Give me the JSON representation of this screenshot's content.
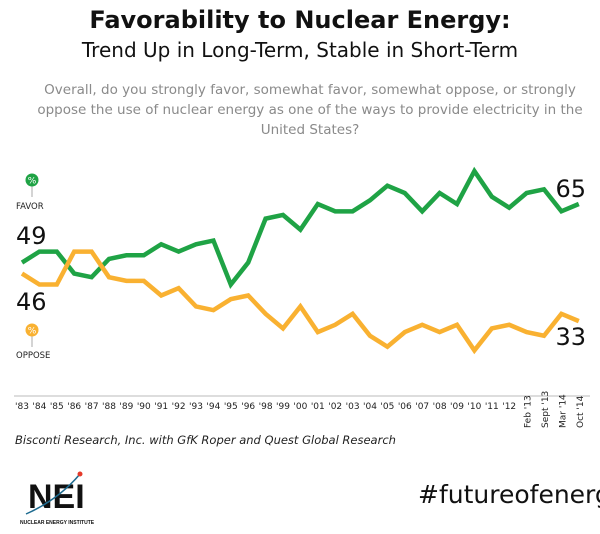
{
  "title": "Favorability to Nuclear Energy:",
  "subtitle": "Trend Up in Long-Term, Stable in Short-Term",
  "question": "Overall, do you strongly favor, somewhat favor, somewhat oppose, or strongly oppose the use of nuclear energy as one of the ways to provide electricity in the United States?",
  "source": "Bisconti Research, Inc. with GfK Roper and Quest Global Research",
  "hashtag": "#futureofenergy",
  "logo": {
    "text": "NEI",
    "subtext": "NUCLEAR ENERGY INSTITUTE"
  },
  "chart_data": {
    "type": "line",
    "title": "Favorability to Nuclear Energy:",
    "categories": [
      "'83",
      "'84",
      "'85",
      "'86",
      "'87",
      "'88",
      "'89",
      "'90",
      "'91",
      "'92",
      "'93",
      "'94",
      "'95",
      "'96",
      "'98",
      "'99",
      "'00",
      "'01",
      "'02",
      "'03",
      "'04",
      "'05",
      "'06",
      "'07",
      "'08",
      "'09",
      "'10",
      "'11",
      "'12",
      "Feb '13",
      "Sept '13",
      "Mar '14",
      "Oct '14"
    ],
    "series": [
      {
        "name": "FAVOR",
        "marker": "%",
        "color": "#1fa345",
        "start_label": "49",
        "end_label": "65",
        "values": [
          49,
          52,
          52,
          46,
          45,
          50,
          51,
          51,
          54,
          52,
          54,
          55,
          43,
          49,
          61,
          62,
          58,
          65,
          63,
          63,
          66,
          70,
          68,
          63,
          68,
          65,
          74,
          67,
          64,
          68,
          69,
          63,
          65
        ]
      },
      {
        "name": "OPPOSE",
        "marker": "%",
        "color": "#f9b131",
        "start_label": "46",
        "end_label": "33",
        "values": [
          46,
          43,
          43,
          52,
          52,
          45,
          44,
          44,
          40,
          42,
          37,
          36,
          39,
          40,
          35,
          31,
          37,
          30,
          32,
          35,
          29,
          26,
          30,
          32,
          30,
          32,
          25,
          31,
          32,
          30,
          29,
          35,
          33
        ]
      }
    ],
    "grid": false,
    "legend": "left",
    "ylim": [
      20,
      80
    ]
  }
}
